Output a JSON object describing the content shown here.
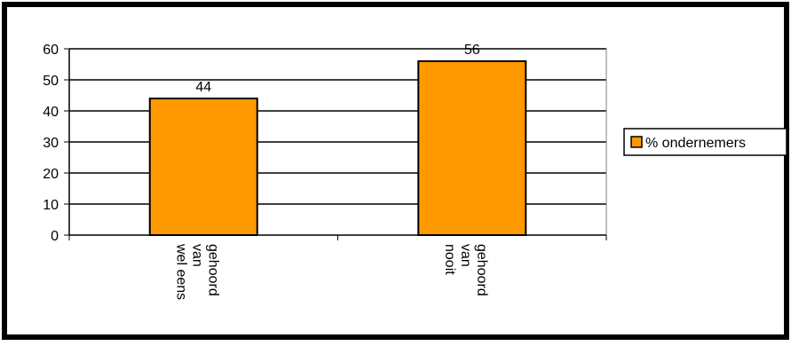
{
  "chart_data": {
    "type": "bar",
    "categories": [
      "wel eens van gehoord",
      "nooit van gehoord"
    ],
    "category_label_lines": [
      [
        "wel eens",
        "van",
        "gehoord"
      ],
      [
        "nooit",
        "van",
        "gehoord"
      ]
    ],
    "series": [
      {
        "name": "% ondernemers",
        "values": [
          44,
          56
        ]
      }
    ],
    "ylim": [
      0,
      60
    ],
    "yticks": [
      0,
      10,
      20,
      30,
      40,
      50,
      60
    ],
    "grid": true,
    "legend": "right",
    "data_labels": true,
    "title": "",
    "xlabel": "",
    "ylabel": "",
    "colors": {
      "bar": "#FF9900",
      "frame": "#000000",
      "background": "#FFFFFF"
    }
  }
}
